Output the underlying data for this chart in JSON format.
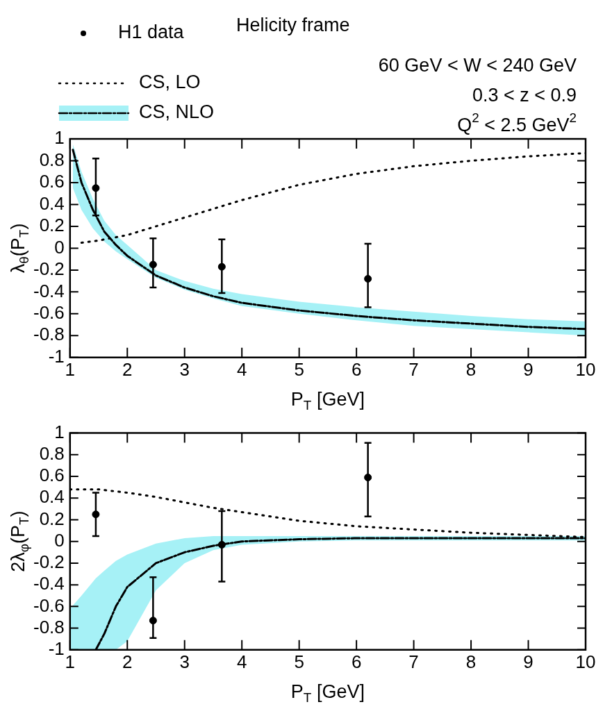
{
  "chart_data": [
    {
      "type": "scatter",
      "xlabel": "P$_{T}$ [GeV]",
      "ylabel": "λ$_{θ}$(P$_{T}$)",
      "xlim": [
        1,
        10
      ],
      "xticks": [
        1,
        2,
        3,
        4,
        5,
        6,
        7,
        8,
        9,
        10
      ],
      "ylim": [
        -1,
        1
      ],
      "yticks": [
        -1,
        -0.8,
        -0.6,
        -0.4,
        -0.2,
        0,
        0.2,
        0.4,
        0.6,
        0.8,
        1
      ],
      "grid": false,
      "legend": "top left",
      "annotations": [
        "Helicity frame",
        "60 GeV < W < 240 GeV",
        "0.3 < z < 0.9",
        "Q$^{2}$ < 2.5 GeV$^{2}$"
      ],
      "series": [
        {
          "name": "H1 data",
          "marker": "circle",
          "color": "#000000",
          "x": [
            1.45,
            2.45,
            3.65,
            6.2
          ],
          "values": [
            0.55,
            -0.15,
            -0.17,
            -0.28
          ],
          "errors": [
            [
              0.3,
              0.82
            ],
            [
              -0.36,
              0.09
            ],
            [
              -0.41,
              0.08
            ],
            [
              -0.54,
              0.04
            ]
          ]
        },
        {
          "name": "CS, LO",
          "type": "line",
          "line_style": "dotted",
          "marker": "none",
          "color": "#000000",
          "x": [
            1.2,
            1.5,
            2,
            2.5,
            3,
            3.5,
            4,
            5,
            6,
            7,
            8,
            9,
            10
          ],
          "values": [
            0.05,
            0.07,
            0.12,
            0.2,
            0.28,
            0.36,
            0.44,
            0.58,
            0.68,
            0.75,
            0.8,
            0.84,
            0.87
          ]
        },
        {
          "name": "CS, NLO",
          "type": "line",
          "line_style": "dashed",
          "marker": "none",
          "color": "#000000",
          "x": [
            1.05,
            1.2,
            1.4,
            1.6,
            1.8,
            2,
            2.5,
            3,
            3.5,
            4,
            5,
            6,
            7,
            8,
            9,
            10
          ],
          "values": [
            0.9,
            0.6,
            0.35,
            0.15,
            0.03,
            -0.07,
            -0.25,
            -0.36,
            -0.44,
            -0.5,
            -0.57,
            -0.62,
            -0.66,
            -0.69,
            -0.72,
            -0.74
          ],
          "lower": [
            0.55,
            0.35,
            0.18,
            0.06,
            -0.03,
            -0.1,
            -0.27,
            -0.38,
            -0.46,
            -0.53,
            -0.6,
            -0.66,
            -0.71,
            -0.74,
            -0.77,
            -0.8
          ],
          "upper": [
            0.95,
            0.7,
            0.45,
            0.25,
            0.12,
            0.03,
            -0.2,
            -0.3,
            -0.37,
            -0.42,
            -0.49,
            -0.54,
            -0.58,
            -0.62,
            -0.65,
            -0.67
          ]
        }
      ]
    },
    {
      "type": "scatter",
      "xlabel": "P$_{T}$ [GeV]",
      "ylabel": "2λ$_{φ}$(P$_{T}$)",
      "xlim": [
        1,
        10
      ],
      "xticks": [
        1,
        2,
        3,
        4,
        5,
        6,
        7,
        8,
        9,
        10
      ],
      "ylim": [
        -1,
        1
      ],
      "yticks": [
        -1,
        -0.8,
        -0.6,
        -0.4,
        -0.2,
        0,
        0.2,
        0.4,
        0.6,
        0.8,
        1
      ],
      "grid": false,
      "series": [
        {
          "marker": "circle",
          "color": "#000000",
          "x": [
            1.45,
            2.45,
            3.65,
            6.2
          ],
          "values": [
            0.25,
            -0.73,
            -0.03,
            0.59
          ],
          "errors": [
            [
              0.05,
              0.45
            ],
            [
              -0.89,
              -0.33
            ],
            [
              -0.37,
              0.28
            ],
            [
              0.23,
              0.91
            ]
          ]
        },
        {
          "type": "line",
          "line_style": "dotted",
          "marker": "none",
          "color": "#000000",
          "x": [
            1,
            1.5,
            2,
            2.5,
            3,
            3.5,
            4,
            5,
            6,
            7,
            8,
            9,
            10
          ],
          "values": [
            0.48,
            0.48,
            0.45,
            0.41,
            0.36,
            0.31,
            0.27,
            0.19,
            0.14,
            0.11,
            0.08,
            0.06,
            0.04
          ]
        },
        {
          "type": "line",
          "line_style": "dashed",
          "marker": "none",
          "color": "#000000",
          "x": [
            1,
            1.2,
            1.45,
            1.6,
            1.8,
            2,
            2.5,
            3,
            3.5,
            4,
            5,
            6,
            7,
            8,
            9,
            10
          ],
          "values": [
            null,
            null,
            -1,
            -0.85,
            -0.6,
            -0.42,
            -0.2,
            -0.1,
            -0.04,
            0,
            0.02,
            0.03,
            0.03,
            0.03,
            0.03,
            0.03
          ],
          "lower": [
            -1,
            -1,
            -1,
            -1,
            -1,
            -0.92,
            -0.45,
            -0.2,
            -0.08,
            -0.03,
            0,
            0.01,
            0.01,
            0.01,
            0.01,
            0.01
          ],
          "upper": [
            -0.62,
            -0.5,
            -0.34,
            -0.27,
            -0.18,
            -0.12,
            -0.02,
            0.03,
            0.05,
            0.05,
            0.05,
            0.05,
            0.05,
            0.05,
            0.05,
            0.05
          ]
        }
      ]
    }
  ]
}
